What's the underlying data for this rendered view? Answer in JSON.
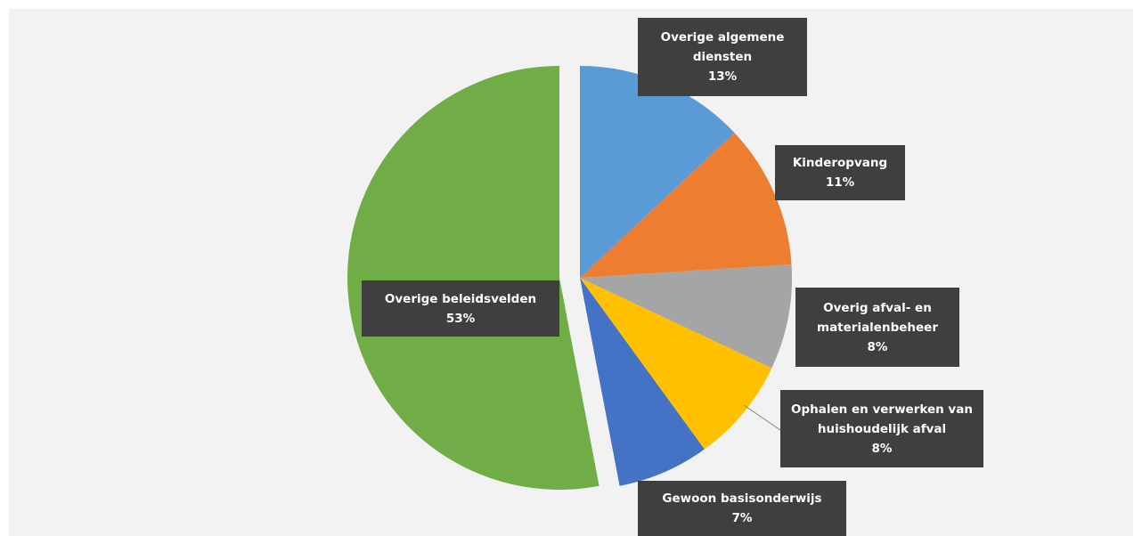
{
  "chart_data": {
    "type": "pie",
    "categories": [
      "Overige algemene diensten",
      "Kinderopvang",
      "Overig afval- en materialenbeheer",
      "Ophalen en verwerken van huishoudelijk afval",
      "Gewoon basisonderwijs",
      "Overige beleidsvelden"
    ],
    "values": [
      13,
      11,
      8,
      8,
      7,
      53
    ],
    "value_labels": [
      "13%",
      "11%",
      "8%",
      "8%",
      "7%",
      "53%"
    ],
    "colors": [
      "#5b9bd5",
      "#ed7d31",
      "#a5a5a5",
      "#ffc000",
      "#4472c4",
      "#70ad47"
    ]
  }
}
